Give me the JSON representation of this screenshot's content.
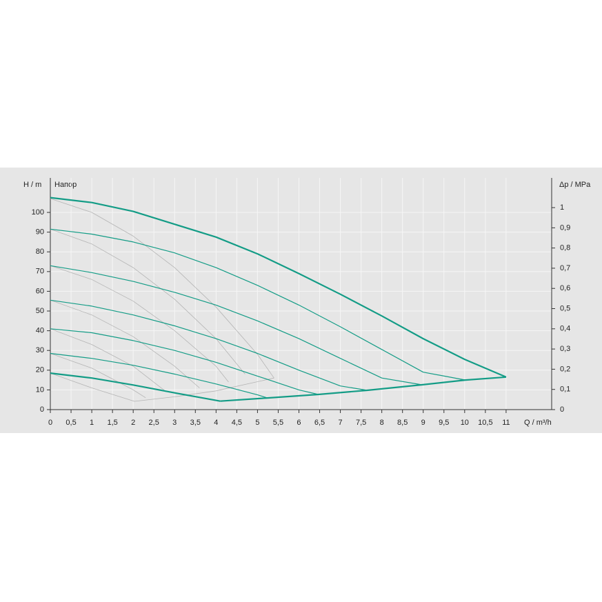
{
  "chart_data": {
    "type": "line",
    "title": "Напор",
    "y_label": "H / m",
    "y2_label": "Δp / MPa",
    "x_label": "Q / m³/h",
    "xlim": [
      0,
      12.1
    ],
    "ylim": [
      0,
      117.5
    ],
    "y2lim": [
      0,
      1.147
    ],
    "grid": true,
    "xticks": [
      0,
      {
        "value": 0.5,
        "label": "0,5"
      },
      1,
      {
        "value": 1.5,
        "label": "1,5"
      },
      2,
      {
        "value": 2.5,
        "label": "2,5"
      },
      3,
      {
        "value": 3.5,
        "label": "3,5"
      },
      4,
      {
        "value": 4.5,
        "label": "4,5"
      },
      5,
      {
        "value": 5.5,
        "label": "5,5"
      },
      6,
      {
        "value": 6.5,
        "label": "6,5"
      },
      7,
      {
        "value": 7.5,
        "label": "7,5"
      },
      8,
      {
        "value": 8.5,
        "label": "8,5"
      },
      9,
      {
        "value": 9.5,
        "label": "9,5"
      },
      10,
      {
        "value": 10.5,
        "label": "10,5"
      },
      11
    ],
    "yticks": [
      0,
      10,
      20,
      30,
      40,
      50,
      60,
      70,
      80,
      90,
      100
    ],
    "y2ticks": [
      0,
      {
        "value": 0.1,
        "label": "0,1"
      },
      {
        "value": 0.2,
        "label": "0,2"
      },
      {
        "value": 0.3,
        "label": "0,3"
      },
      {
        "value": 0.4,
        "label": "0,4"
      },
      {
        "value": 0.5,
        "label": "0,5"
      },
      {
        "value": 0.6,
        "label": "0,6"
      },
      {
        "value": 0.7,
        "label": "0,7"
      },
      {
        "value": 0.8,
        "label": "0,8"
      },
      {
        "value": 0.9,
        "label": "0,9"
      },
      1
    ],
    "series": [
      {
        "color": "#b4b4b4",
        "line_width": 0.8,
        "x": [
          0,
          1,
          2,
          3,
          4,
          5,
          5.4
        ],
        "values": [
          107,
          100,
          88,
          72,
          52,
          28,
          16
        ]
      },
      {
        "color": "#b4b4b4",
        "line_width": 0.8,
        "x": [
          0,
          1,
          2,
          3,
          4,
          4.7
        ],
        "values": [
          91.5,
          84,
          72,
          56,
          36,
          18
        ]
      },
      {
        "color": "#b4b4b4",
        "line_width": 0.8,
        "x": [
          0,
          1,
          2,
          3,
          4,
          4.3
        ],
        "values": [
          73,
          66,
          55,
          40,
          22,
          14
        ]
      },
      {
        "color": "#b4b4b4",
        "line_width": 0.8,
        "x": [
          0,
          1,
          2,
          3,
          3.6
        ],
        "values": [
          55.5,
          48,
          37,
          22,
          11
        ]
      },
      {
        "color": "#b4b4b4",
        "line_width": 0.8,
        "x": [
          0,
          1,
          2,
          2.8
        ],
        "values": [
          41,
          33,
          22,
          9
        ]
      },
      {
        "color": "#b4b4b4",
        "line_width": 0.8,
        "x": [
          0,
          1,
          2,
          2.3
        ],
        "values": [
          28.5,
          21,
          10,
          6
        ]
      },
      {
        "color": "#b4b4b4",
        "line_width": 0.8,
        "x": [
          0,
          1,
          2.03,
          3,
          4,
          5.4
        ],
        "values": [
          18.5,
          11,
          4.2,
          6.5,
          9.5,
          16
        ]
      },
      {
        "color": "#139c86",
        "line_width": 2.2,
        "x": [
          0,
          1,
          2,
          3,
          4,
          5,
          6,
          7,
          8,
          9,
          10,
          11
        ],
        "values": [
          107.5,
          105,
          100.5,
          94,
          87.5,
          79,
          69,
          58.5,
          47.5,
          36,
          25.5,
          16.5
        ]
      },
      {
        "color": "#139c86",
        "line_width": 1.2,
        "x": [
          0,
          1,
          2,
          3,
          4,
          5,
          6,
          7,
          8,
          9,
          10.02
        ],
        "values": [
          91.5,
          89,
          85,
          79.5,
          72,
          63,
          53,
          42,
          30.5,
          19,
          15
        ]
      },
      {
        "color": "#139c86",
        "line_width": 1.2,
        "x": [
          0,
          1,
          2,
          3,
          4,
          5,
          6,
          7,
          8,
          8.97
        ],
        "values": [
          73,
          69.5,
          65,
          59.5,
          53,
          45,
          36,
          26,
          16,
          12.6
        ]
      },
      {
        "color": "#139c86",
        "line_width": 1.2,
        "x": [
          0,
          1,
          2,
          3,
          4,
          5,
          6,
          7,
          7.65
        ],
        "values": [
          55.5,
          52.5,
          48,
          42.5,
          36,
          28.5,
          20,
          12,
          9.8
        ]
      },
      {
        "color": "#139c86",
        "line_width": 1.2,
        "x": [
          0,
          1,
          2,
          3,
          4,
          5,
          6,
          6.47
        ],
        "values": [
          41,
          39,
          35,
          30,
          24,
          17,
          10,
          7.7
        ]
      },
      {
        "color": "#139c86",
        "line_width": 1.2,
        "x": [
          0,
          1,
          2,
          3,
          4,
          5,
          5.24
        ],
        "values": [
          28.5,
          26,
          22.5,
          18,
          13,
          7.5,
          5.9
        ]
      },
      {
        "color": "#139c86",
        "line_width": 2.2,
        "x": [
          0,
          1,
          2,
          3,
          4.1
        ],
        "values": [
          18.5,
          16,
          12.5,
          8.5,
          4.3
        ]
      },
      {
        "color": "#139c86",
        "line_width": 2.2,
        "x": [
          4.1,
          5.24,
          6.47,
          7.65,
          8.97,
          10.02,
          11
        ],
        "values": [
          4.3,
          5.9,
          7.7,
          9.8,
          12.6,
          15,
          16.5
        ]
      }
    ]
  }
}
